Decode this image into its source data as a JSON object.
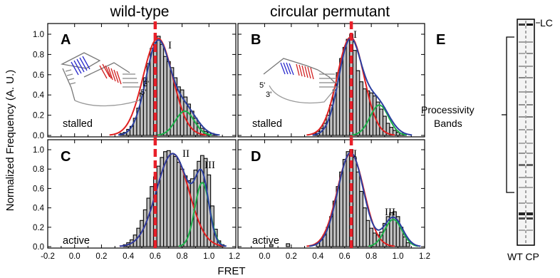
{
  "titles": {
    "left": "wild-type",
    "right": "circular permutant"
  },
  "axes": {
    "ylabel": "Normalized Frequency (A. U.)",
    "xlabel": "FRET",
    "xticks": [
      "-0.2",
      "0.0",
      "0.2",
      "0.4",
      "0.6",
      "0.8",
      "1.0",
      "1.2"
    ],
    "yticks": [
      "0.0",
      "0.2",
      "0.4",
      "0.6",
      "0.8",
      "1.0"
    ]
  },
  "colors": {
    "bars": "#c0c0c0",
    "fit_total": "#2b3fa0",
    "peak_low": "#e02020",
    "peak_high": "#1db04a",
    "marker": "#e8202a"
  },
  "panels": [
    {
      "letter": "A",
      "condition": "stalled",
      "peaks": [
        "I"
      ],
      "construct": "wild-type",
      "end_labels": [
        "3'",
        "5'"
      ]
    },
    {
      "letter": "B",
      "condition": "stalled",
      "peaks": [
        "I"
      ],
      "construct": "circular permutant",
      "end_labels": [
        "5'",
        "3'"
      ]
    },
    {
      "letter": "C",
      "condition": "active",
      "peaks": [
        "II",
        "III"
      ]
    },
    {
      "letter": "D",
      "condition": "active",
      "peaks": [
        "I",
        "III"
      ]
    }
  ],
  "gel": {
    "letter": "E",
    "top_label": "LC",
    "bracket_label_1": "Processivity",
    "bracket_label_2": "Bands",
    "bottom_label": "WT CP"
  },
  "chart_data": [
    {
      "type": "bar",
      "panel": "A",
      "title": "wild-type",
      "condition": "stalled",
      "xlabel": "FRET",
      "ylabel": "Normalized Frequency (A. U.)",
      "xlim": [
        -0.2,
        1.2
      ],
      "ylim": [
        0,
        1.1
      ],
      "bin_width": 0.025,
      "marker_x": 0.6,
      "x": [
        0.35,
        0.375,
        0.4,
        0.425,
        0.45,
        0.475,
        0.5,
        0.525,
        0.55,
        0.575,
        0.6,
        0.625,
        0.65,
        0.675,
        0.7,
        0.725,
        0.75,
        0.775,
        0.8,
        0.825,
        0.85,
        0.875,
        0.9,
        0.925,
        0.95,
        0.975,
        1.0,
        1.025,
        1.05
      ],
      "values": [
        0.02,
        0.03,
        0.06,
        0.09,
        0.17,
        0.27,
        0.42,
        0.57,
        0.71,
        0.86,
        0.92,
        0.98,
        0.9,
        0.78,
        0.73,
        0.67,
        0.57,
        0.48,
        0.45,
        0.38,
        0.31,
        0.24,
        0.17,
        0.12,
        0.07,
        0.04,
        0.03,
        0.02,
        0.01
      ],
      "peaks": [
        {
          "label": "I",
          "center": 0.62,
          "amplitude": 0.96,
          "sigma": 0.11,
          "color": "#e02020"
        },
        {
          "label": "",
          "center": 0.82,
          "amplitude": 0.24,
          "sigma": 0.07,
          "color": "#1db04a"
        }
      ],
      "fit_peaks": [
        {
          "center": 0.62,
          "amplitude": 0.92,
          "sigma": 0.09
        },
        {
          "center": 0.82,
          "amplitude": 0.26,
          "sigma": 0.09
        }
      ]
    },
    {
      "type": "bar",
      "panel": "B",
      "title": "circular permutant",
      "condition": "stalled",
      "xlabel": "FRET",
      "ylabel": "Normalized Frequency (A. U.)",
      "xlim": [
        -0.2,
        1.2
      ],
      "ylim": [
        0,
        1.1
      ],
      "bin_width": 0.025,
      "marker_x": 0.65,
      "x": [
        0.375,
        0.4,
        0.425,
        0.45,
        0.475,
        0.5,
        0.525,
        0.55,
        0.575,
        0.6,
        0.625,
        0.65,
        0.675,
        0.7,
        0.725,
        0.75,
        0.775,
        0.8,
        0.825,
        0.85,
        0.875,
        0.9,
        0.925,
        0.95,
        0.975,
        1.0,
        1.025,
        1.05
      ],
      "values": [
        0.02,
        0.04,
        0.07,
        0.12,
        0.2,
        0.3,
        0.45,
        0.62,
        0.76,
        0.87,
        0.95,
        1.0,
        0.84,
        0.64,
        0.53,
        0.46,
        0.44,
        0.42,
        0.39,
        0.33,
        0.26,
        0.19,
        0.12,
        0.08,
        0.05,
        0.03,
        0.02,
        0.01
      ],
      "peaks": [
        {
          "label": "I",
          "center": 0.645,
          "amplitude": 0.97,
          "sigma": 0.1,
          "color": "#e02020"
        },
        {
          "label": "",
          "center": 0.86,
          "amplitude": 0.3,
          "sigma": 0.07,
          "color": "#1db04a"
        }
      ],
      "fit_peaks": [
        {
          "center": 0.64,
          "amplitude": 0.93,
          "sigma": 0.085
        },
        {
          "center": 0.84,
          "amplitude": 0.33,
          "sigma": 0.09
        }
      ]
    },
    {
      "type": "bar",
      "panel": "C",
      "title": "wild-type",
      "condition": "active",
      "xlabel": "FRET",
      "ylabel": "Normalized Frequency (A. U.)",
      "xlim": [
        -0.2,
        1.2
      ],
      "ylim": [
        0,
        1.1
      ],
      "bin_width": 0.025,
      "marker_x": 0.6,
      "x": [
        0.375,
        0.4,
        0.425,
        0.45,
        0.475,
        0.5,
        0.525,
        0.55,
        0.575,
        0.6,
        0.625,
        0.65,
        0.675,
        0.7,
        0.725,
        0.75,
        0.775,
        0.8,
        0.825,
        0.85,
        0.875,
        0.9,
        0.925,
        0.95,
        0.975,
        1.0,
        1.025,
        1.05,
        1.075,
        1.1
      ],
      "values": [
        0.02,
        0.04,
        0.07,
        0.12,
        0.19,
        0.27,
        0.38,
        0.5,
        0.62,
        0.72,
        0.83,
        0.92,
        0.98,
        0.99,
        0.96,
        0.93,
        0.87,
        0.8,
        0.73,
        0.68,
        0.7,
        0.79,
        0.88,
        0.94,
        0.91,
        0.74,
        0.42,
        0.18,
        0.06,
        0.02
      ],
      "peaks": [
        {
          "label": "II",
          "center": 0.73,
          "amplitude": 0.96,
          "sigma": 0.12,
          "color": "#e02020"
        },
        {
          "label": "III",
          "center": 0.95,
          "amplitude": 0.66,
          "sigma": 0.055,
          "color": "#1db04a"
        }
      ],
      "fit_peaks": [
        {
          "center": 0.73,
          "amplitude": 0.96,
          "sigma": 0.12
        },
        {
          "center": 0.95,
          "amplitude": 0.6,
          "sigma": 0.05
        }
      ]
    },
    {
      "type": "bar",
      "panel": "D",
      "title": "circular permutant",
      "condition": "active",
      "xlabel": "FRET",
      "ylabel": "Normalized Frequency (A. U.)",
      "xlim": [
        -0.2,
        1.2
      ],
      "ylim": [
        0,
        1.1
      ],
      "bin_width": 0.025,
      "marker_x": 0.65,
      "x": [
        0.05,
        0.175,
        0.4,
        0.425,
        0.45,
        0.475,
        0.5,
        0.525,
        0.55,
        0.575,
        0.6,
        0.625,
        0.65,
        0.675,
        0.7,
        0.725,
        0.75,
        0.775,
        0.8,
        0.825,
        0.85,
        0.875,
        0.9,
        0.925,
        0.95,
        0.975,
        1.0,
        1.025,
        1.05,
        1.075
      ],
      "values": [
        0.02,
        0.03,
        0.04,
        0.07,
        0.12,
        0.2,
        0.31,
        0.47,
        0.62,
        0.77,
        0.9,
        0.98,
        1.0,
        0.92,
        0.77,
        0.57,
        0.4,
        0.27,
        0.19,
        0.14,
        0.12,
        0.15,
        0.24,
        0.31,
        0.35,
        0.36,
        0.31,
        0.2,
        0.1,
        0.04
      ],
      "peaks": [
        {
          "label": "I",
          "center": 0.645,
          "amplitude": 0.96,
          "sigma": 0.1,
          "color": "#e02020"
        },
        {
          "label": "III",
          "center": 0.965,
          "amplitude": 0.28,
          "sigma": 0.065,
          "color": "#1db04a"
        }
      ],
      "fit_peaks": [
        {
          "center": 0.645,
          "amplitude": 0.97,
          "sigma": 0.095
        },
        {
          "center": 0.965,
          "amplitude": 0.3,
          "sigma": 0.07
        }
      ]
    }
  ]
}
